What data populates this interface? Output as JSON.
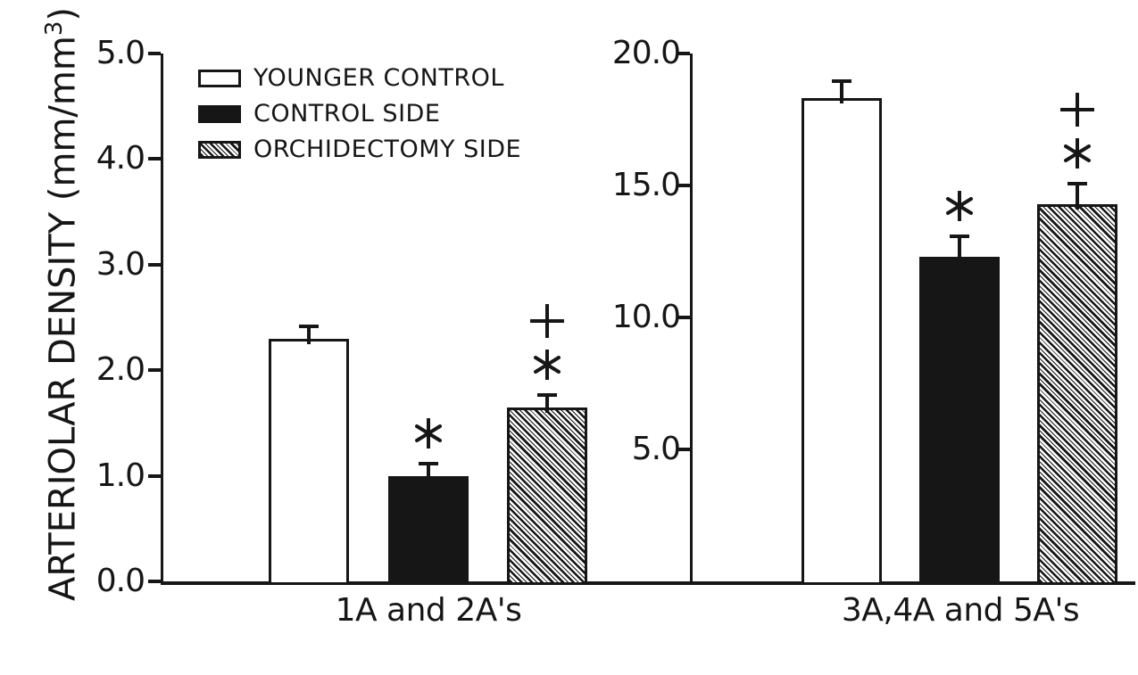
{
  "figure": {
    "background": "#ffffff",
    "ink_color": "#161616",
    "y_axis_title": {
      "prefix": "ARTERIOLAR DENSITY (mm/mm",
      "superscript": "3",
      "suffix": ")"
    }
  },
  "legend": {
    "items": [
      {
        "label": "YOUNGER CONTROL",
        "fill": "white"
      },
      {
        "label": "CONTROL SIDE",
        "fill": "black"
      },
      {
        "label": "ORCHIDECTOMY SIDE",
        "fill": "hatched"
      }
    ]
  },
  "chart_data": [
    {
      "type": "bar",
      "panel": "left",
      "title": "",
      "xlabel": "1A and 2A's",
      "ylabel": "ARTERIOLAR DENSITY (mm/mm3)",
      "ylim": [
        0,
        5.0
      ],
      "grid": false,
      "yticks": [
        {
          "value": 0,
          "label": "0.0"
        },
        {
          "value": 1,
          "label": "1.0"
        },
        {
          "value": 2,
          "label": "2.0"
        },
        {
          "value": 3,
          "label": "3.0"
        },
        {
          "value": 4,
          "label": "4.0"
        },
        {
          "value": 5,
          "label": "5.0"
        }
      ],
      "bars": [
        {
          "series": "YOUNGER CONTROL",
          "fill": "white",
          "value": 2.3,
          "error": 0.1,
          "annotations": []
        },
        {
          "series": "CONTROL SIDE",
          "fill": "black",
          "value": 1.0,
          "error": 0.1,
          "annotations": [
            "*"
          ]
        },
        {
          "series": "ORCHIDECTOMY SIDE",
          "fill": "hatched",
          "value": 1.65,
          "error": 0.1,
          "annotations": [
            "*",
            "+"
          ]
        }
      ]
    },
    {
      "type": "bar",
      "panel": "right",
      "title": "",
      "xlabel": "3A,4A and 5A's",
      "ylabel": "ARTERIOLAR DENSITY (mm/mm3)",
      "ylim": [
        0,
        20.0
      ],
      "grid": false,
      "yticks": [
        {
          "value": 5,
          "label": "5.0"
        },
        {
          "value": 10,
          "label": "10.0"
        },
        {
          "value": 15,
          "label": "15.0"
        },
        {
          "value": 20,
          "label": "20.0"
        }
      ],
      "bars": [
        {
          "series": "YOUNGER CONTROL",
          "fill": "white",
          "value": 18.3,
          "error": 0.6,
          "annotations": []
        },
        {
          "series": "CONTROL SIDE",
          "fill": "black",
          "value": 12.3,
          "error": 0.7,
          "annotations": [
            "*"
          ]
        },
        {
          "series": "ORCHIDECTOMY SIDE",
          "fill": "hatched",
          "value": 14.3,
          "error": 0.7,
          "annotations": [
            "*",
            "+"
          ]
        }
      ]
    }
  ]
}
